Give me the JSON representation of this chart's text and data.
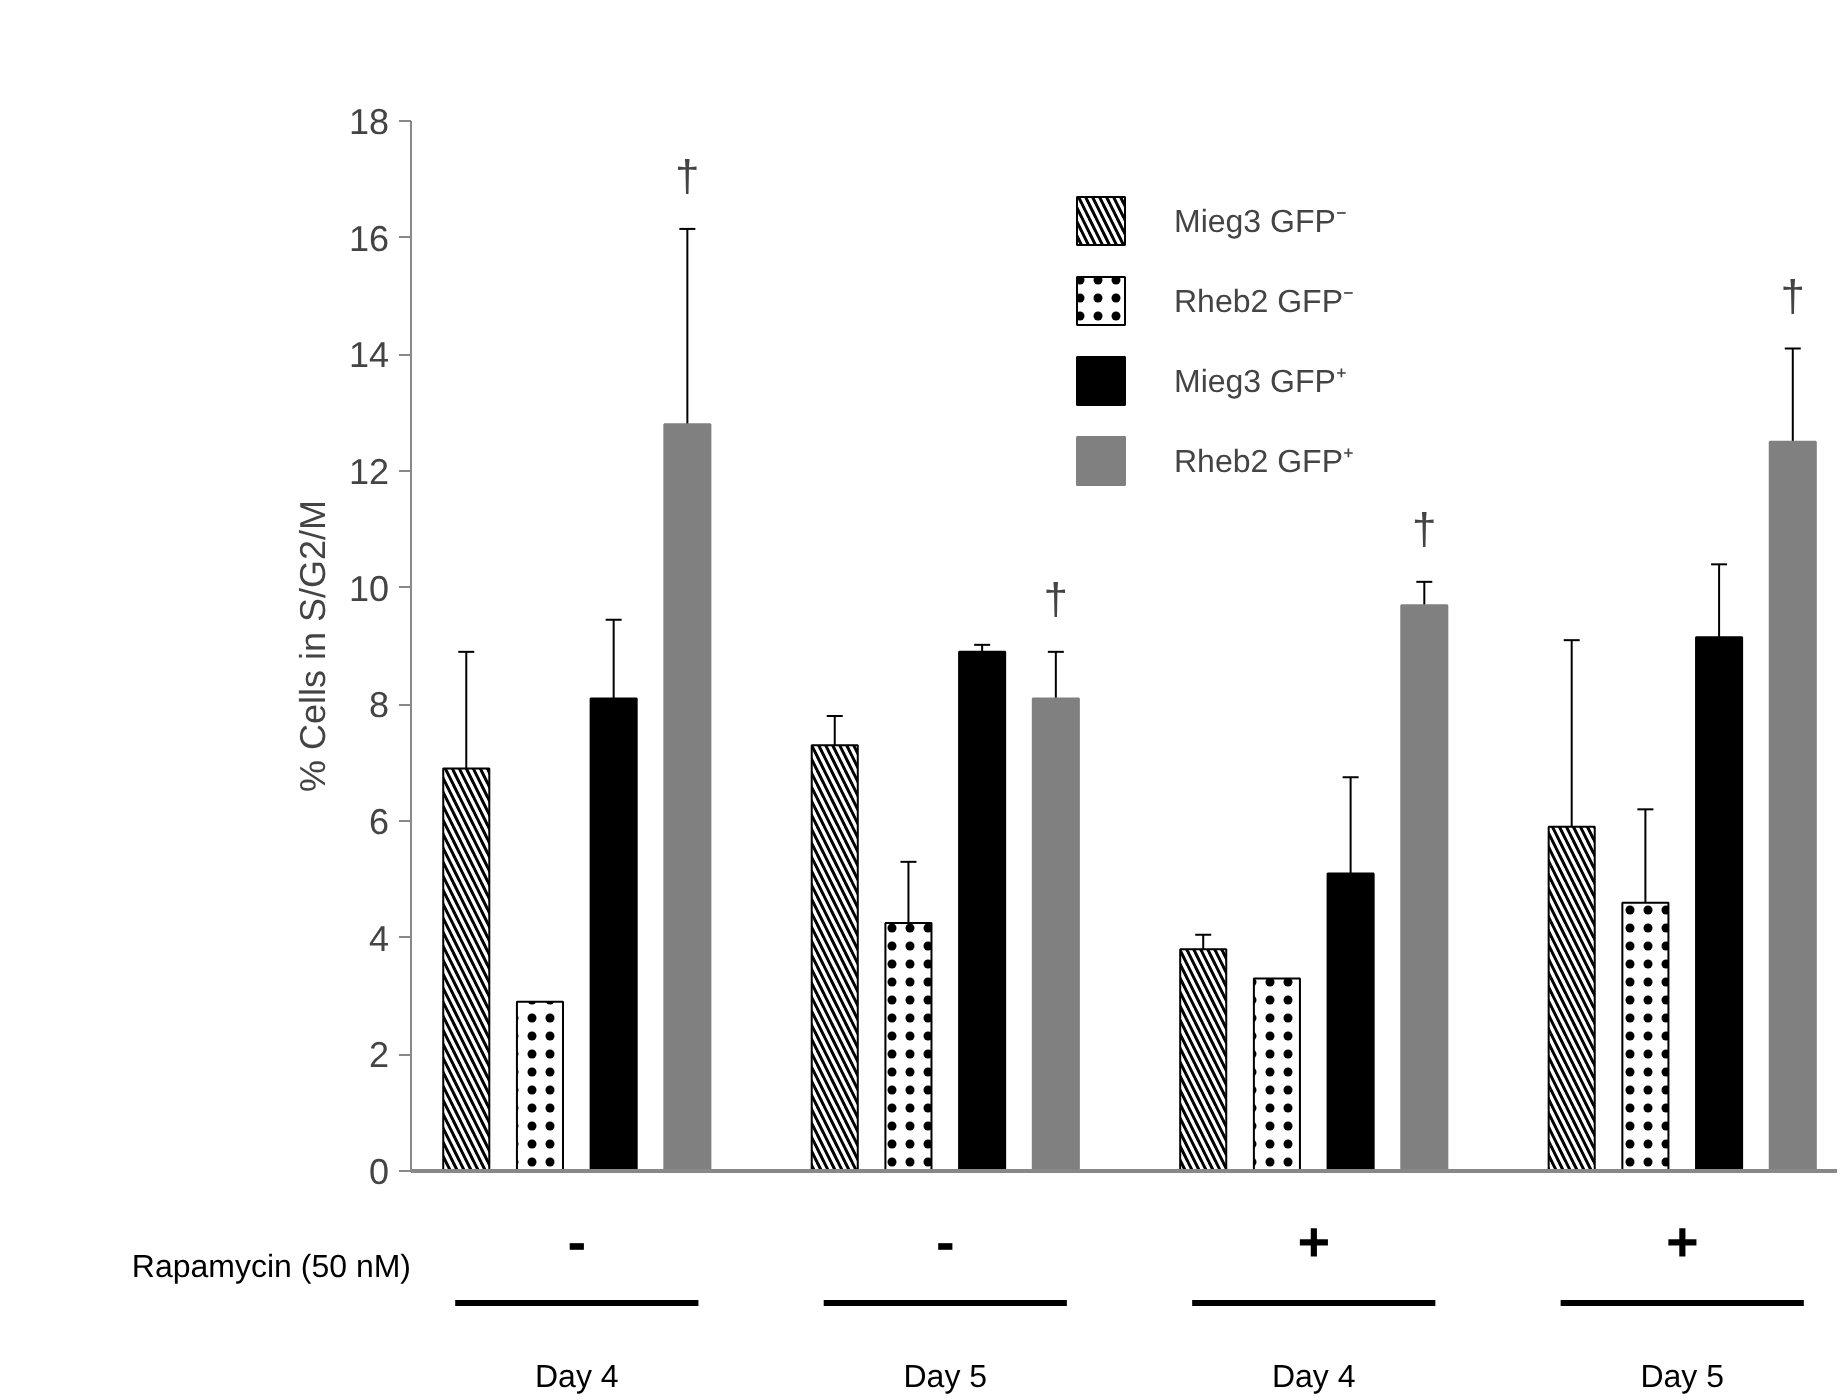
{
  "chart_data": {
    "type": "bar",
    "categories": [
      "Day 4",
      "Day 5",
      "Day 4",
      "Day 5"
    ],
    "ylabel": "% Cells in S/G2/M",
    "series": [
      {
        "name": "Mieg3 GFP⁻",
        "color": "#ffffff",
        "values": [
          6.9,
          7.3,
          3.8,
          5.9
        ],
        "errors": [
          2.0,
          0.5,
          0.25,
          3.2
        ]
      },
      {
        "name": "Rheb2 GFP⁻",
        "color": "#ffffff",
        "values": [
          2.9,
          4.25,
          3.3,
          4.6
        ],
        "errors": [
          null,
          1.05,
          null,
          1.6
        ]
      },
      {
        "name": "Mieg3 GFP⁺",
        "color": "#000000",
        "values": [
          8.1,
          8.9,
          5.1,
          9.15
        ],
        "errors": [
          1.35,
          0.12,
          1.65,
          1.25
        ]
      },
      {
        "name": "Rheb2 GFP⁺",
        "color": "#808080",
        "values": [
          12.8,
          8.1,
          9.7,
          12.5
        ],
        "errors": [
          3.35,
          0.8,
          0.4,
          1.6
        ]
      }
    ],
    "ylim": [
      0,
      18
    ],
    "yticks": [
      0,
      2,
      4,
      6,
      8,
      10,
      12,
      14,
      16,
      18
    ],
    "grid": false,
    "legend": "top",
    "annotations": [
      "Rapamycin (50 nM)",
      "-",
      "-",
      "+",
      "+",
      "†",
      "†",
      "†",
      "†"
    ]
  }
}
